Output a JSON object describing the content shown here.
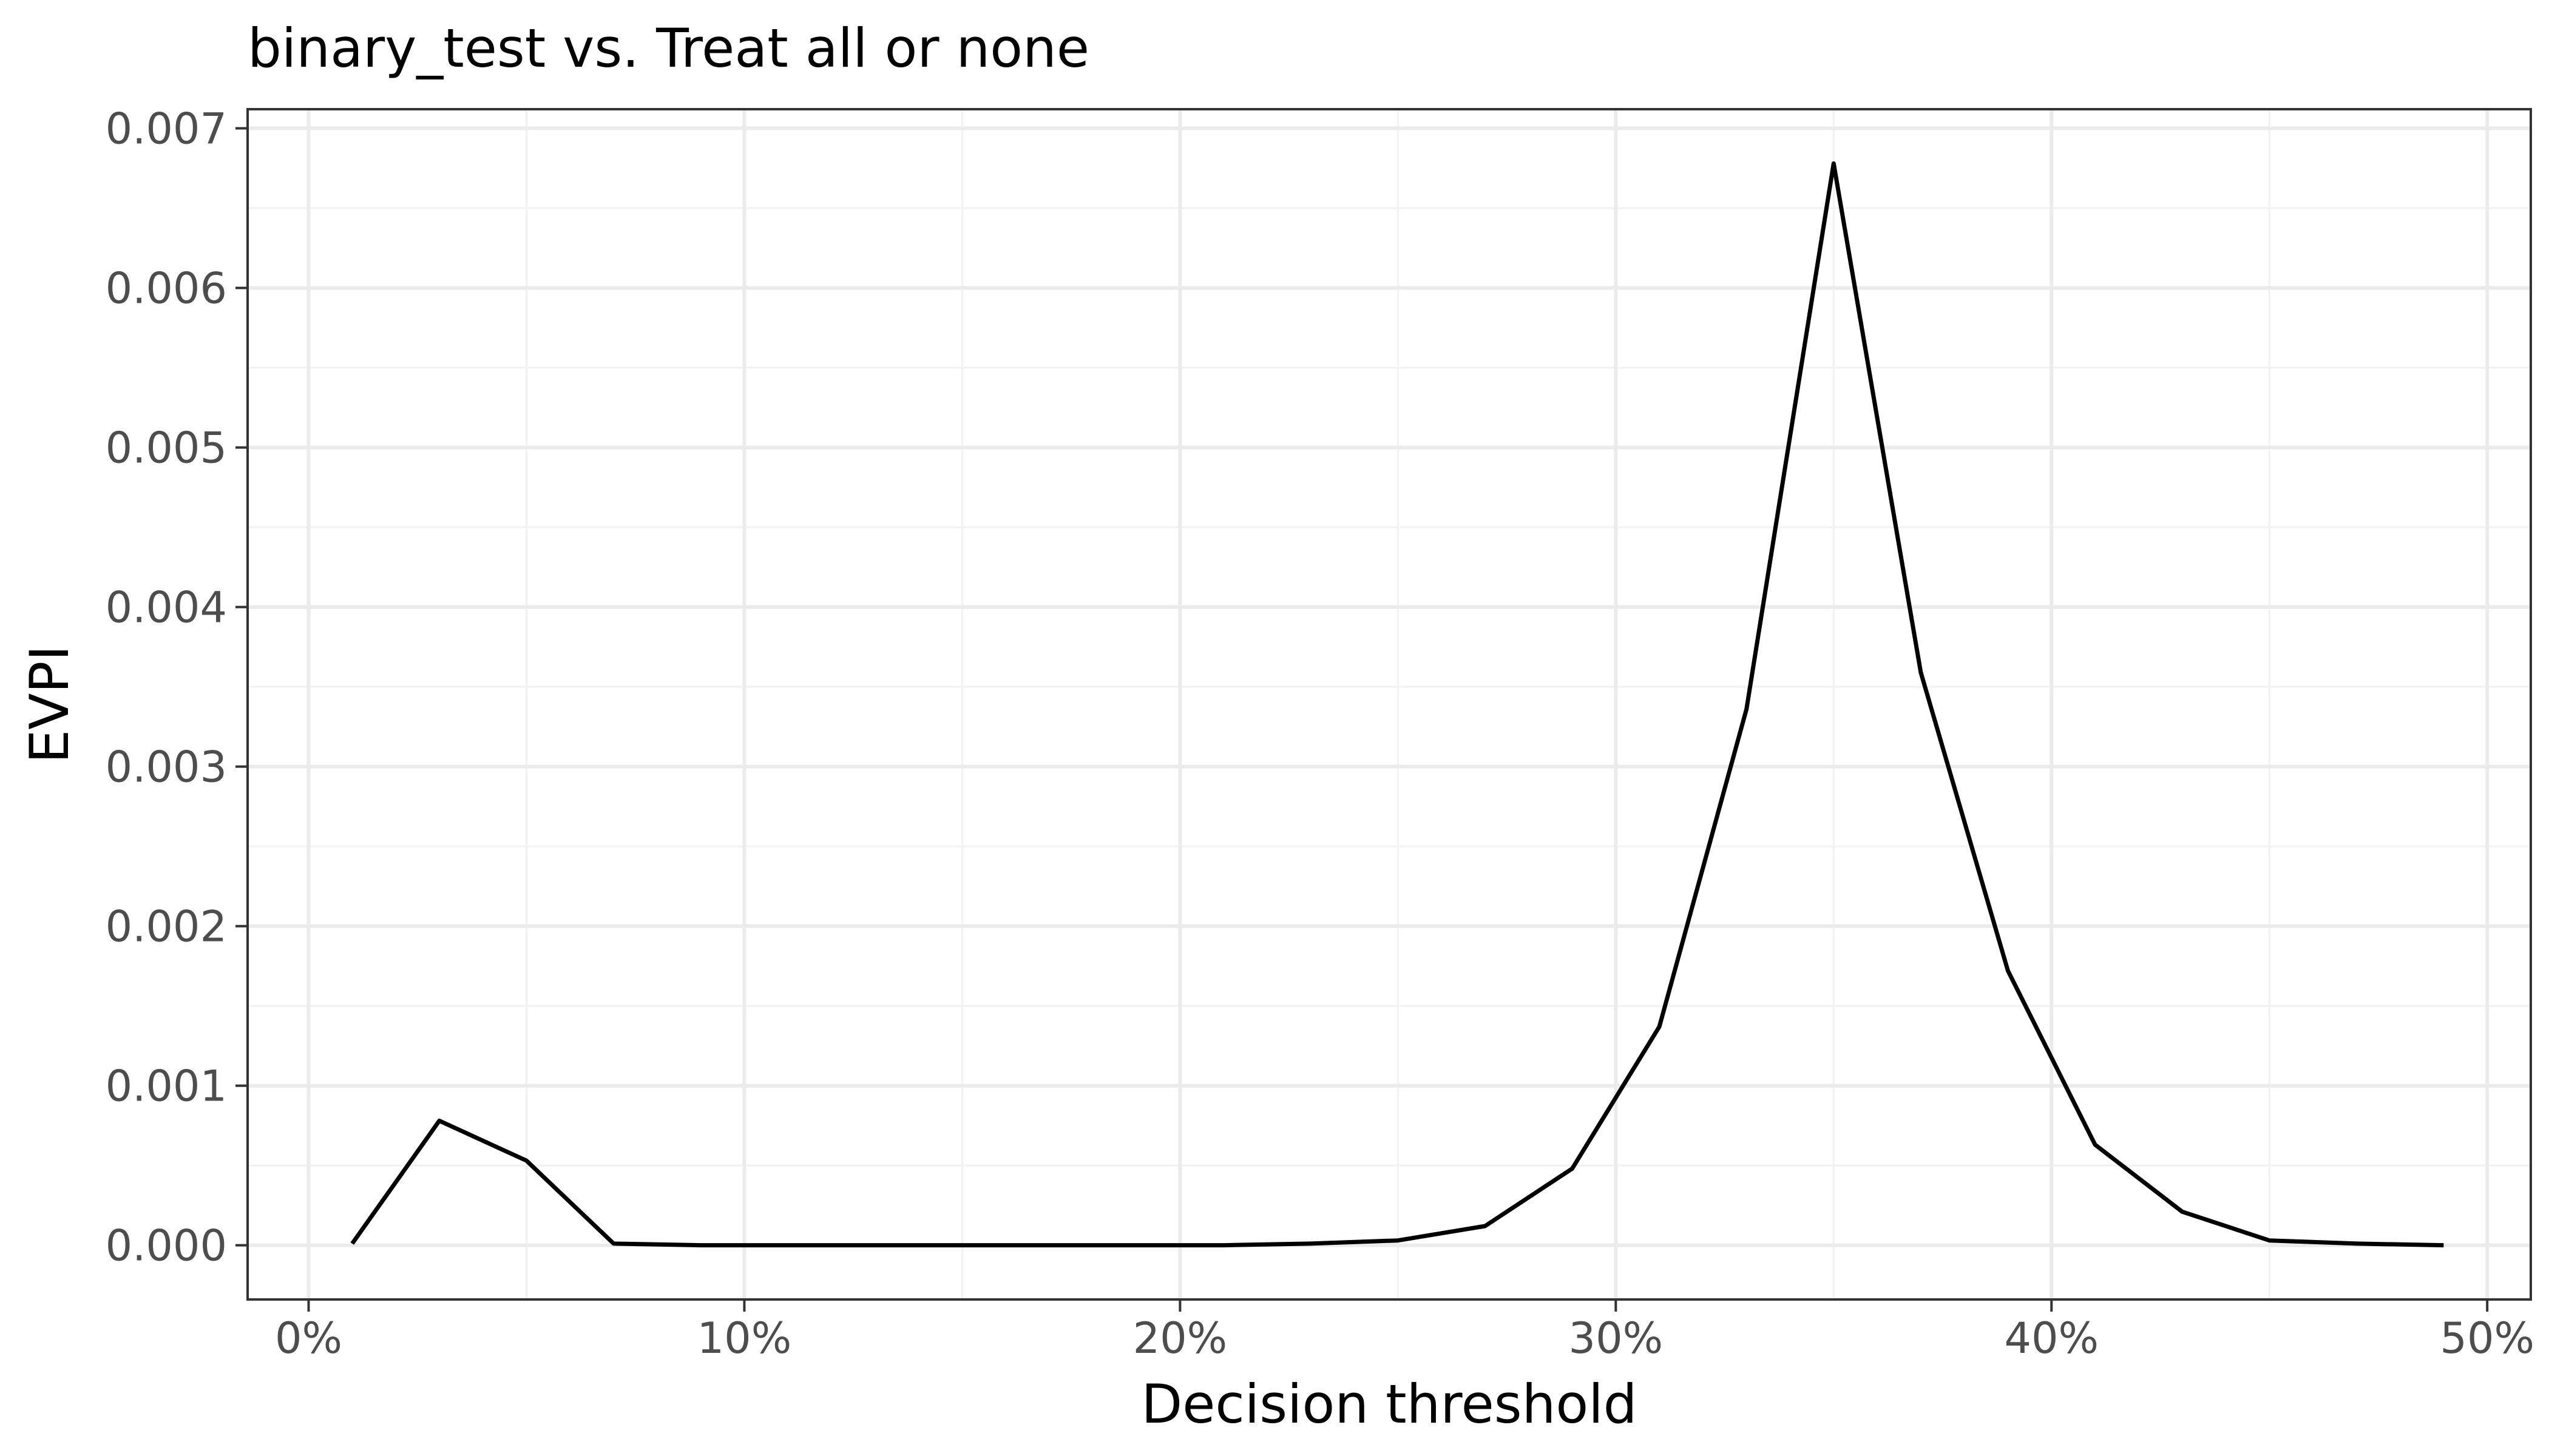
{
  "chart_data": {
    "type": "line",
    "title": "binary_test vs. Treat all or none",
    "xlabel": "Decision threshold",
    "ylabel": "EVPI",
    "xlim": [
      -0.014,
      0.51
    ],
    "ylim": [
      -0.00034,
      0.00712
    ],
    "x_ticks": [
      0,
      0.1,
      0.2,
      0.3,
      0.4,
      0.5
    ],
    "x_tick_labels": [
      "0%",
      "10%",
      "20%",
      "30%",
      "40%",
      "50%"
    ],
    "x_minor_ticks": [
      0.05,
      0.15,
      0.25,
      0.35,
      0.45
    ],
    "y_ticks": [
      0,
      0.001,
      0.002,
      0.003,
      0.004,
      0.005,
      0.006,
      0.007
    ],
    "y_tick_labels": [
      "0.000",
      "0.001",
      "0.002",
      "0.003",
      "0.004",
      "0.005",
      "0.006",
      "0.007"
    ],
    "y_minor_ticks": [
      0.0005,
      0.0015,
      0.0025,
      0.0035,
      0.0045,
      0.0055,
      0.0065
    ],
    "grid": true,
    "series": [
      {
        "color": "#000000",
        "x": [
          0.01,
          0.03,
          0.05,
          0.07,
          0.09,
          0.11,
          0.13,
          0.15,
          0.17,
          0.19,
          0.21,
          0.23,
          0.25,
          0.27,
          0.29,
          0.31,
          0.33,
          0.35,
          0.37,
          0.39,
          0.41,
          0.43,
          0.45,
          0.47,
          0.49
        ],
        "y": [
          1e-05,
          0.00078,
          0.00053,
          1e-05,
          0.0,
          0.0,
          0.0,
          0.0,
          0.0,
          0.0,
          0.0,
          1e-05,
          3e-05,
          0.00012,
          0.00048,
          0.00137,
          0.00336,
          0.00678,
          0.00359,
          0.00172,
          0.00063,
          0.00021,
          3e-05,
          1e-05,
          0.0
        ]
      }
    ]
  }
}
